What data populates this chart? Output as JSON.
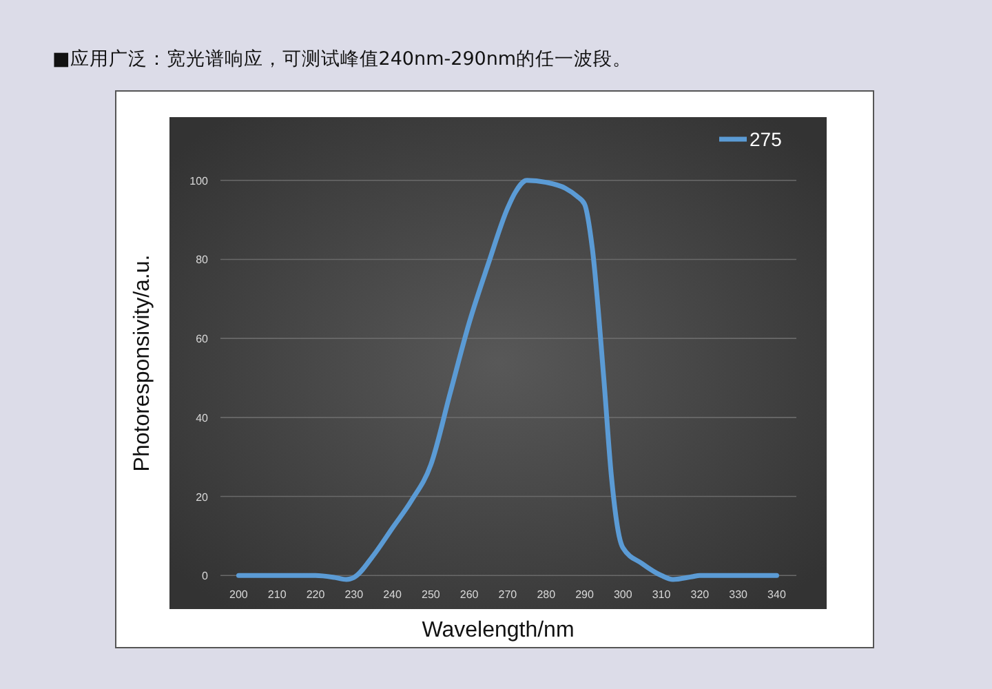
{
  "chart_data": {
    "type": "line",
    "title": "■应用广泛：宽光谱响应，可测试峰值240nm-290nm的任一波段。",
    "xlabel": "Wavelength/nm",
    "ylabel": "Photoresponsivity/a.u.",
    "x": [
      200,
      210,
      220,
      225,
      228,
      230,
      235,
      240,
      245,
      250,
      255,
      260,
      265,
      270,
      272,
      275,
      280,
      285,
      288,
      290,
      292,
      295,
      297,
      299,
      300,
      305,
      310,
      313,
      318,
      320,
      330,
      340
    ],
    "series": [
      {
        "name": "275",
        "color": "#5b9bd5",
        "values": [
          0,
          0,
          0,
          -0.5,
          -1,
          -0.5,
          5,
          12,
          19,
          28,
          46,
          64,
          79,
          93,
          97,
          100,
          99.5,
          98,
          96,
          94,
          83,
          50,
          25,
          10,
          7,
          3,
          0,
          -1,
          -0.3,
          0,
          0,
          0
        ]
      }
    ],
    "xlim": [
      182,
      353
    ],
    "xticks": [
      200,
      210,
      220,
      230,
      240,
      250,
      260,
      270,
      280,
      290,
      300,
      310,
      320,
      330,
      340
    ],
    "ylim": [
      -8.5,
      116
    ],
    "yticks": [
      0,
      20,
      40,
      60,
      80,
      100
    ],
    "grid": "y",
    "legend": "top right",
    "line_style": "solid",
    "marker": "none"
  }
}
